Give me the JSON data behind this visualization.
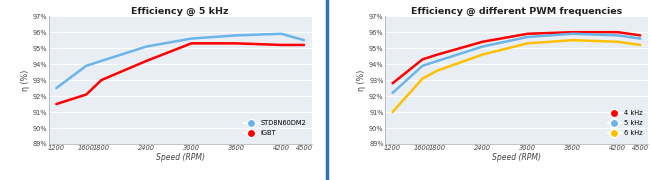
{
  "chart1": {
    "title": "Efficiency @ 5 kHz",
    "xlabel": "Speed (RPM)",
    "ylabel": "η (%)",
    "x": [
      1200,
      1600,
      1800,
      2400,
      3000,
      3600,
      4200,
      4500
    ],
    "blue_line": [
      92.5,
      93.9,
      94.2,
      95.1,
      95.6,
      95.8,
      95.9,
      95.5
    ],
    "red_line": [
      91.5,
      92.1,
      93.0,
      94.2,
      95.3,
      95.3,
      95.2,
      95.2
    ],
    "blue_color": "#6BB5E8",
    "red_color": "#FF0000",
    "blue_label": "STD8N60DM2",
    "red_label": "IGBT",
    "ylim": [
      89,
      97
    ],
    "yticks": [
      89,
      90,
      91,
      92,
      93,
      94,
      95,
      96,
      97
    ],
    "xticks": [
      1200,
      1600,
      1800,
      2400,
      3000,
      3600,
      4200,
      4500
    ]
  },
  "chart2": {
    "title": "Efficiency @ different PWM frequencies",
    "xlabel": "Speed (RPM)",
    "ylabel": "η (%)",
    "x": [
      1200,
      1600,
      1800,
      2400,
      3000,
      3600,
      4200,
      4500
    ],
    "red_line": [
      92.8,
      94.3,
      94.6,
      95.4,
      95.9,
      96.0,
      96.0,
      95.8
    ],
    "blue_line": [
      92.2,
      93.9,
      94.2,
      95.1,
      95.7,
      95.9,
      95.8,
      95.6
    ],
    "yellow_line": [
      91.0,
      93.1,
      93.6,
      94.6,
      95.3,
      95.5,
      95.4,
      95.2
    ],
    "red_color": "#FF0000",
    "blue_color": "#6BB5E8",
    "yellow_color": "#FFC000",
    "red_label": "4 kHz",
    "blue_label": "5 kHz",
    "yellow_label": "6 kHz",
    "ylim": [
      89,
      97
    ],
    "yticks": [
      89,
      90,
      91,
      92,
      93,
      94,
      95,
      96,
      97
    ],
    "xticks": [
      1200,
      1600,
      1800,
      2400,
      3000,
      3600,
      4200,
      4500
    ]
  },
  "bg_color": "#FFFFFF",
  "plot_bg_color": "#E8EEF4",
  "grid_color": "#FFFFFF",
  "divider_color": "#2E74B5"
}
